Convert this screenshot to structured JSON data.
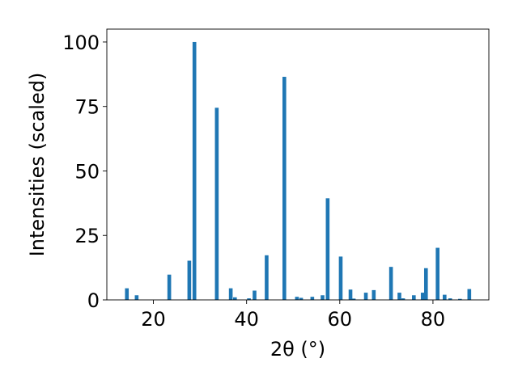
{
  "chart_data": {
    "type": "bar",
    "xlabel": "2θ (°)",
    "ylabel": "Intensities (scaled)",
    "xlim": [
      10,
      92
    ],
    "ylim": [
      0,
      105
    ],
    "xticks": [
      20,
      40,
      60,
      80
    ],
    "xtick_labels": [
      "20",
      "40",
      "60",
      "80"
    ],
    "yticks": [
      0,
      25,
      50,
      75,
      100
    ],
    "ytick_labels": [
      "0",
      "25",
      "50",
      "75",
      "100"
    ],
    "bar_width": 0.8,
    "bar_color": "#1f77b4",
    "grid": false,
    "x": [
      14.3,
      16.4,
      23.4,
      27.7,
      28.8,
      33.6,
      36.6,
      37.5,
      40.5,
      41.7,
      44.3,
      48.1,
      50.8,
      51.7,
      54.1,
      56.3,
      57.4,
      60.2,
      62.3,
      63.0,
      65.6,
      67.3,
      71.0,
      72.8,
      73.6,
      75.9,
      77.8,
      78.5,
      81.0,
      82.5,
      83.7,
      85.8,
      87.8
    ],
    "y": [
      4.5,
      1.8,
      9.8,
      15.2,
      100.0,
      74.5,
      4.5,
      1.0,
      0.6,
      3.6,
      17.3,
      86.5,
      1.2,
      0.8,
      1.2,
      1.8,
      39.4,
      16.8,
      4.0,
      0.5,
      2.8,
      3.8,
      12.8,
      2.8,
      0.6,
      1.8,
      2.8,
      12.3,
      20.2,
      2.0,
      0.6,
      0.4,
      4.2
    ]
  }
}
